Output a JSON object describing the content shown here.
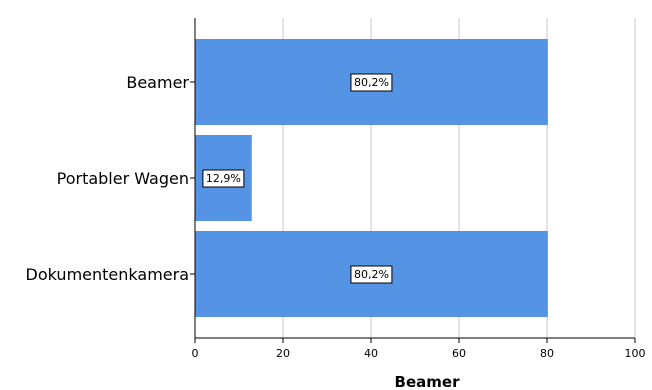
{
  "chart_data": {
    "type": "bar",
    "orientation": "horizontal",
    "categories": [
      "Beamer",
      "Portabler Wagen",
      "Dokumentenkamera"
    ],
    "values": [
      80.2,
      12.9,
      80.2
    ],
    "data_labels": [
      "80,2%",
      "12,9%",
      "80,2%"
    ],
    "title": "",
    "xlabel": "Beamer",
    "ylabel": "",
    "xlim": [
      0,
      100
    ],
    "xticks": [
      0,
      20,
      40,
      60,
      80,
      100
    ],
    "xtick_labels": [
      "0",
      "20",
      "40",
      "60",
      "80",
      "100"
    ],
    "grid": "vertical",
    "legend": "none",
    "colors": {
      "bar": "#5593e5",
      "grid": "#c8c8c8",
      "axis": "#000000",
      "label_bg": "#ffffff"
    }
  }
}
